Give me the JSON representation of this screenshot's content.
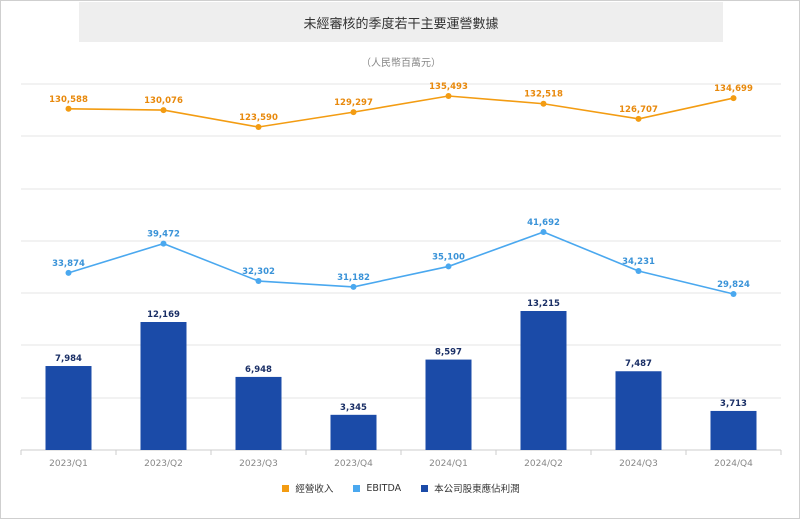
{
  "title": "未經審核的季度若干主要運營數據",
  "subtitle": "（人民幣百萬元）",
  "chart_data": {
    "type": "bar",
    "categories": [
      "2023/Q1",
      "2023/Q2",
      "2023/Q3",
      "2023/Q4",
      "2024/Q1",
      "2024/Q2",
      "2024/Q3",
      "2024/Q4"
    ],
    "series": [
      {
        "name": "經營收入",
        "type": "line",
        "color": "#f39c12",
        "values": [
          130588,
          130076,
          123590,
          129297,
          135493,
          132518,
          126707,
          134699
        ],
        "labels": [
          "130,588",
          "130,076",
          "123,590",
          "129,297",
          "135,493",
          "132,518",
          "126,707",
          "134,699"
        ]
      },
      {
        "name": "EBITDA",
        "type": "line",
        "color": "#4aa8ef",
        "values": [
          33874,
          39472,
          32302,
          31182,
          35100,
          41692,
          34231,
          29824
        ],
        "labels": [
          "33,874",
          "39,472",
          "32,302",
          "31,182",
          "35,100",
          "41,692",
          "34,231",
          "29,824"
        ]
      },
      {
        "name": "本公司股東應佔利潤",
        "type": "bar",
        "color": "#1b4ba8",
        "values": [
          7984,
          12169,
          6948,
          3345,
          8597,
          13215,
          7487,
          3713
        ],
        "labels": [
          "7,984",
          "12,169",
          "6,948",
          "3,345",
          "8,597",
          "13,215",
          "7,487",
          "3,713"
        ]
      }
    ],
    "grid": true,
    "legend": "bottom-center"
  }
}
